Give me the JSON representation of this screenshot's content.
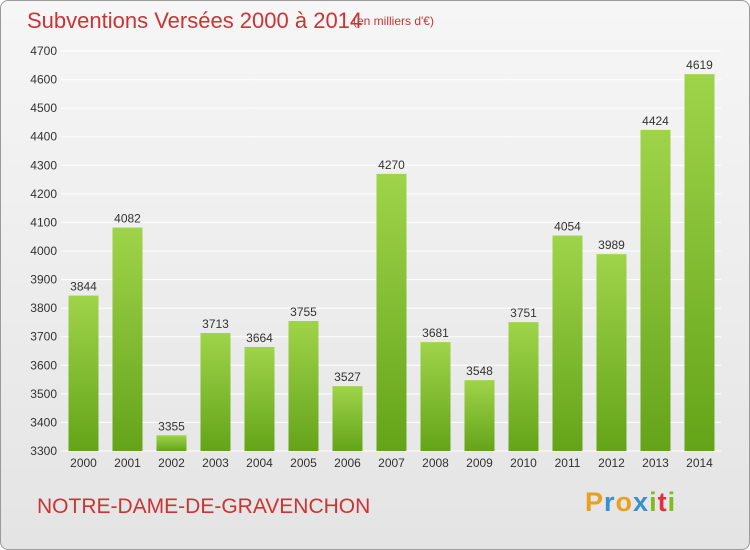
{
  "header": {
    "title": "Subventions Versées 2000 à 2014",
    "unit": "(en milliers d'€)"
  },
  "footer": {
    "commune": "NOTRE-DAME-DE-GRAVENCHON",
    "logo_letters": [
      "P",
      "r",
      "o",
      "x",
      "i",
      "t",
      "i"
    ],
    "logo_colors": [
      "#e8a020",
      "#3a8fd0",
      "#e8a020",
      "#3a8fd0",
      "#80bb20",
      "#e03040",
      "#80bb20"
    ]
  },
  "colors": {
    "bar_top": "#9fd44a",
    "bar_bottom": "#64a419",
    "grid": "#ffffff"
  },
  "chart_data": {
    "type": "bar",
    "title": "Subventions Versées 2000 à 2014",
    "subtitle": "(en milliers d'€)",
    "categories": [
      "2000",
      "2001",
      "2002",
      "2003",
      "2004",
      "2005",
      "2006",
      "2007",
      "2008",
      "2009",
      "2010",
      "2011",
      "2012",
      "2013",
      "2014"
    ],
    "values": [
      3844,
      4082,
      3355,
      3713,
      3664,
      3755,
      3527,
      4270,
      3681,
      3548,
      3751,
      4054,
      3989,
      4424,
      4619
    ],
    "ylim": [
      3300,
      4700
    ],
    "yticks": [
      3300,
      3400,
      3500,
      3600,
      3700,
      3800,
      3900,
      4000,
      4100,
      4200,
      4300,
      4400,
      4500,
      4600,
      4700
    ],
    "grid": true
  }
}
